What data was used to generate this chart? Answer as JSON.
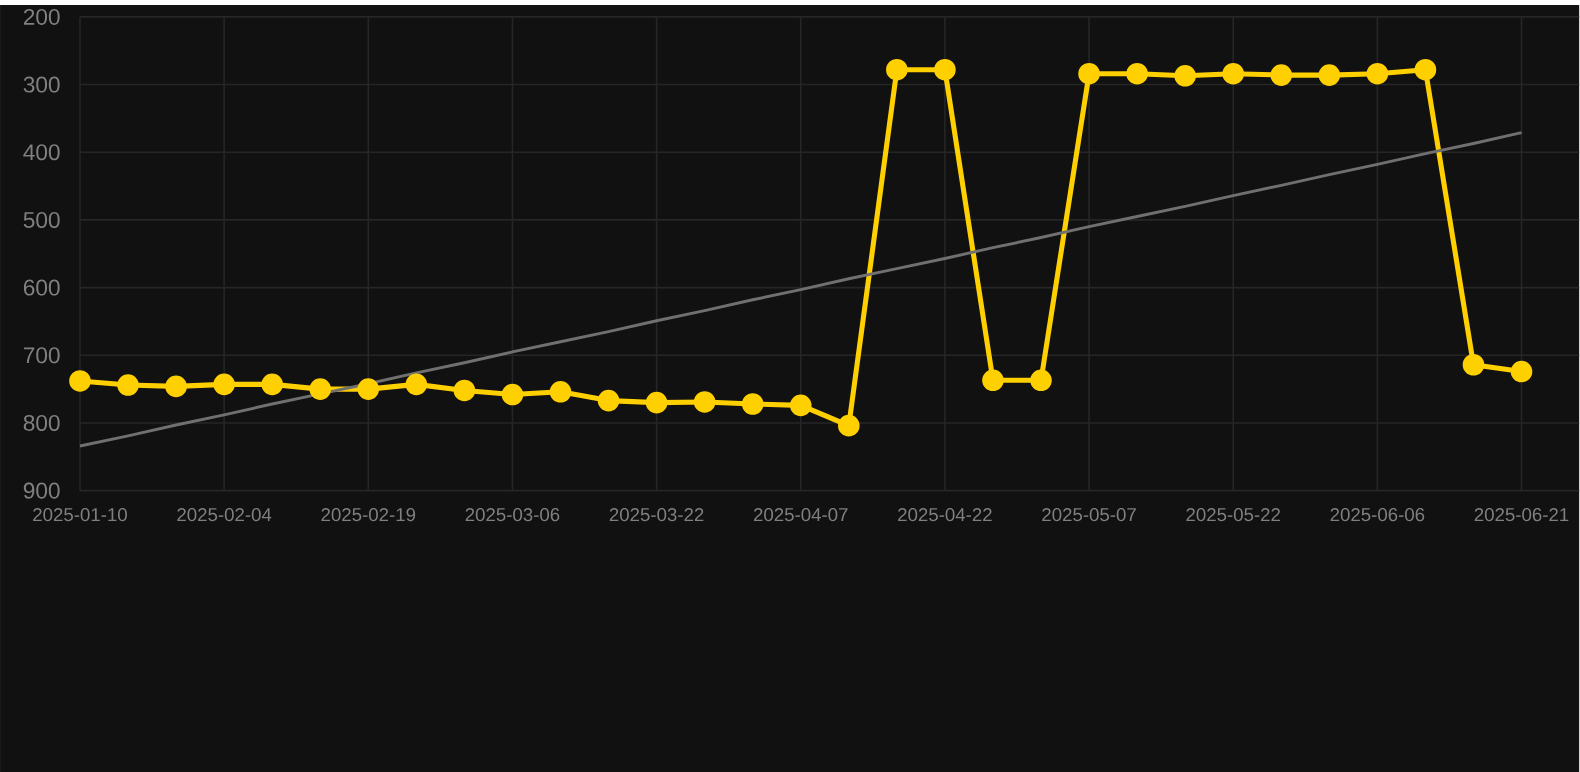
{
  "chart_data": {
    "type": "line",
    "categories": [
      "2025-01-10",
      null,
      null,
      "2025-02-04",
      null,
      null,
      "2025-02-19",
      null,
      null,
      "2025-03-06",
      null,
      null,
      "2025-03-22",
      null,
      null,
      "2025-04-07",
      null,
      null,
      "2025-04-22",
      null,
      null,
      "2025-05-07",
      null,
      null,
      "2025-05-22",
      null,
      null,
      "2025-06-06",
      null,
      null,
      "2025-06-21"
    ],
    "series": [
      {
        "color": "#ffd000",
        "marker": "circle",
        "values": [
          738,
          744,
          746,
          743,
          743,
          750,
          750,
          743,
          752,
          758,
          754,
          767,
          770,
          769,
          772,
          774,
          804,
          278,
          278,
          737,
          737,
          284,
          284,
          287,
          284,
          286,
          286,
          284,
          278,
          714,
          724
        ]
      },
      {
        "type": "line",
        "color": "#707070",
        "marker": "none",
        "values": [
          834,
          819,
          803,
          788,
          772,
          757,
          742,
          726,
          711,
          695,
          680,
          665,
          649,
          634,
          618,
          603,
          587,
          572,
          557,
          541,
          526,
          510,
          495,
          480,
          464,
          449,
          433,
          418,
          402,
          387,
          371
        ]
      }
    ],
    "ylim": [
      900,
      200
    ],
    "yticks": [
      200,
      300,
      400,
      500,
      600,
      700,
      800,
      900
    ],
    "grid": true
  }
}
